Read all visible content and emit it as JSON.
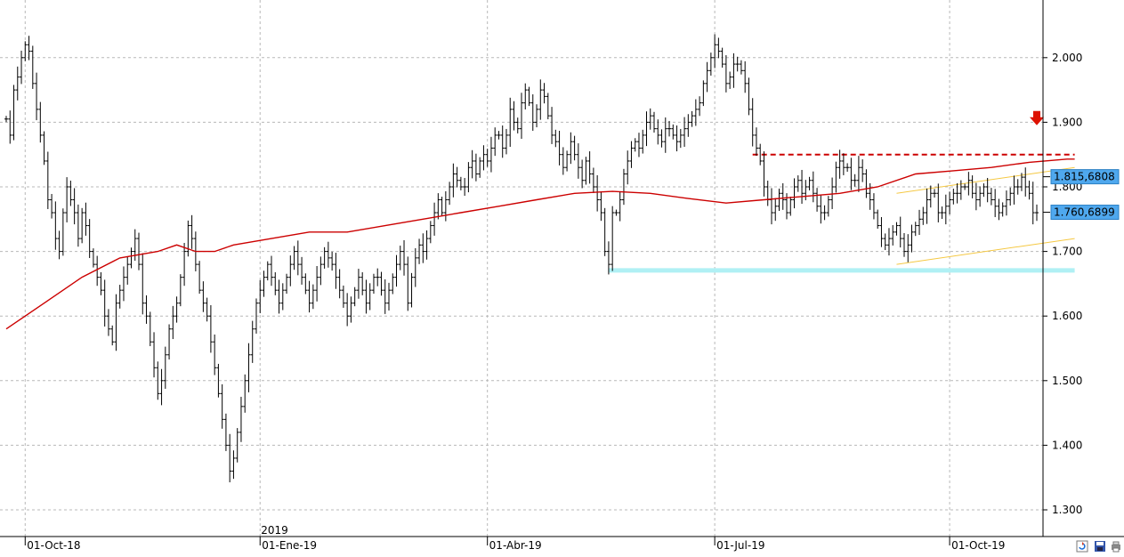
{
  "chart_data": {
    "type": "ohlc",
    "grid": true,
    "ylim": [
      1250,
      2100
    ],
    "y_ticks": [
      1300,
      1400,
      1500,
      1600,
      1700,
      1800,
      1900,
      2000
    ],
    "y_tick_labels": [
      "1.300",
      "1.400",
      "1.500",
      "1.600",
      "1.700",
      "1.800",
      "1.900",
      "2.000"
    ],
    "x_ticks": [
      {
        "label": "01-Oct-18",
        "index": 5
      },
      {
        "label": "01-Ene-19",
        "index": 67
      },
      {
        "label": "01-Abr-19",
        "index": 127
      },
      {
        "label": "01-Jul-19",
        "index": 187
      },
      {
        "label": "01-Oct-19",
        "index": 249
      }
    ],
    "year_label": {
      "text": "2019",
      "index": 67
    },
    "ohlc_close": [
      1905,
      1880,
      1950,
      1970,
      2000,
      2020,
      2010,
      1960,
      1920,
      1880,
      1840,
      1780,
      1760,
      1720,
      1700,
      1760,
      1800,
      1780,
      1760,
      1720,
      1760,
      1740,
      1700,
      1680,
      1660,
      1640,
      1600,
      1580,
      1560,
      1620,
      1640,
      1660,
      1680,
      1700,
      1720,
      1680,
      1620,
      1600,
      1560,
      1520,
      1480,
      1500,
      1540,
      1580,
      1600,
      1620,
      1660,
      1700,
      1740,
      1720,
      1680,
      1640,
      1620,
      1600,
      1560,
      1520,
      1480,
      1440,
      1400,
      1360,
      1380,
      1420,
      1460,
      1500,
      1540,
      1580,
      1620,
      1640,
      1660,
      1680,
      1660,
      1640,
      1620,
      1640,
      1660,
      1680,
      1700,
      1680,
      1660,
      1640,
      1620,
      1640,
      1660,
      1680,
      1700,
      1690,
      1680,
      1660,
      1640,
      1620,
      1600,
      1620,
      1640,
      1660,
      1640,
      1620,
      1640,
      1660,
      1660,
      1640,
      1620,
      1640,
      1660,
      1680,
      1700,
      1680,
      1620,
      1660,
      1690,
      1710,
      1700,
      1720,
      1740,
      1760,
      1780,
      1760,
      1780,
      1800,
      1820,
      1810,
      1800,
      1800,
      1830,
      1840,
      1820,
      1840,
      1850,
      1840,
      1860,
      1880,
      1880,
      1860,
      1880,
      1920,
      1900,
      1890,
      1930,
      1950,
      1930,
      1900,
      1920,
      1950,
      1940,
      1910,
      1880,
      1870,
      1850,
      1830,
      1850,
      1870,
      1850,
      1830,
      1810,
      1840,
      1820,
      1800,
      1780,
      1760,
      1700,
      1680,
      1760,
      1760,
      1780,
      1820,
      1840,
      1860,
      1870,
      1860,
      1880,
      1900,
      1910,
      1890,
      1880,
      1870,
      1890,
      1890,
      1880,
      1870,
      1880,
      1890,
      1900,
      1910,
      1920,
      1930,
      1960,
      1980,
      2000,
      2020,
      2010,
      1990,
      1960,
      1970,
      1990,
      1990,
      1980,
      1960,
      1920,
      1880,
      1860,
      1840,
      1800,
      1780,
      1760,
      1770,
      1790,
      1780,
      1760,
      1780,
      1800,
      1810,
      1790,
      1800,
      1810,
      1790,
      1770,
      1760,
      1760,
      1780,
      1800,
      1830,
      1840,
      1830,
      1830,
      1810,
      1810,
      1830,
      1820,
      1790,
      1780,
      1760,
      1740,
      1720,
      1710,
      1720,
      1730,
      1740,
      1720,
      1700,
      1710,
      1730,
      1740,
      1750,
      1760,
      1780,
      1790,
      1790,
      1760,
      1760,
      1770,
      1780,
      1790,
      1790,
      1800,
      1800,
      1810,
      1790,
      1780,
      1790,
      1800,
      1790,
      1780,
      1770,
      1760,
      1770,
      1780,
      1790,
      1800,
      1800,
      1815,
      1800,
      1790,
      1760,
      1760
    ],
    "moving_average": {
      "color": "#cc0000",
      "points": [
        [
          0,
          1580
        ],
        [
          10,
          1620
        ],
        [
          20,
          1660
        ],
        [
          30,
          1690
        ],
        [
          40,
          1700
        ],
        [
          45,
          1710
        ],
        [
          50,
          1700
        ],
        [
          55,
          1700
        ],
        [
          60,
          1710
        ],
        [
          70,
          1720
        ],
        [
          80,
          1730
        ],
        [
          90,
          1730
        ],
        [
          100,
          1740
        ],
        [
          110,
          1750
        ],
        [
          120,
          1760
        ],
        [
          130,
          1770
        ],
        [
          140,
          1780
        ],
        [
          150,
          1790
        ],
        [
          160,
          1793
        ],
        [
          170,
          1790
        ],
        [
          180,
          1782
        ],
        [
          190,
          1775
        ],
        [
          200,
          1780
        ],
        [
          210,
          1785
        ],
        [
          220,
          1790
        ],
        [
          230,
          1800
        ],
        [
          240,
          1820
        ],
        [
          250,
          1825
        ],
        [
          260,
          1830
        ],
        [
          270,
          1838
        ],
        [
          280,
          1843
        ],
        [
          282,
          1843
        ]
      ]
    },
    "resistance_line": {
      "value": 1850,
      "from_index": 197,
      "to_index": 282,
      "color": "#cc0000",
      "style": "dashed"
    },
    "support_band": {
      "value": 1670,
      "from_index": 159,
      "to_index": 282,
      "color": "#b0f0f4"
    },
    "channel_upper": {
      "from": [
        235,
        1790
      ],
      "to": [
        282,
        1830
      ],
      "color": "#f5c842"
    },
    "channel_lower": {
      "from": [
        235,
        1680
      ],
      "to": [
        282,
        1720
      ],
      "color": "#f5c842"
    },
    "signal_arrow": {
      "index": 272,
      "value": 1905,
      "direction": "down",
      "color": "#dd1100"
    },
    "last_price_labels": [
      {
        "text": "1.815,6808",
        "value": 1815.6808
      },
      {
        "text": "1.760,6899",
        "value": 1760.6899
      }
    ]
  },
  "toolbar": {
    "icons": [
      {
        "name": "refresh-icon",
        "color": "#1e6fd9"
      },
      {
        "name": "save-icon",
        "color": "#3355aa"
      },
      {
        "name": "print-icon",
        "color": "#555555"
      }
    ]
  }
}
